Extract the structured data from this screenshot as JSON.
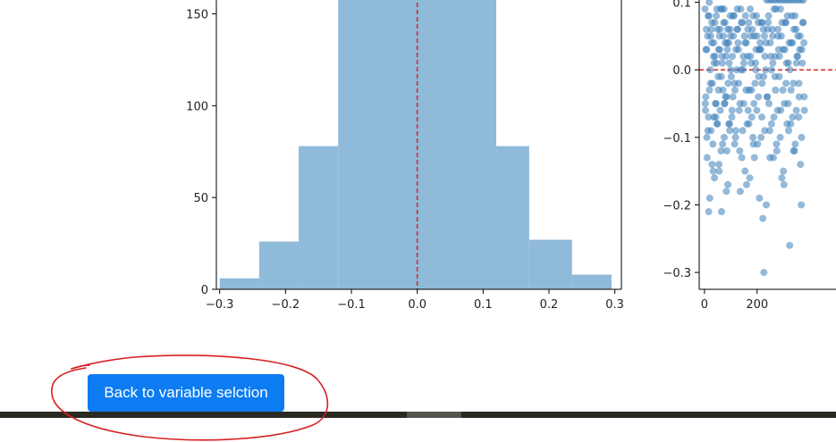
{
  "colors": {
    "bar_fill": "#8fbad9",
    "scatter_point": "#3d7fb9",
    "reference_line": "#d62728",
    "button_bg": "#0d7cf2",
    "annotation": "#d62020",
    "bottom_bar": "#2a2a22"
  },
  "back_button": {
    "label": "Back to variable selction"
  },
  "chart_data": [
    {
      "type": "bar",
      "bin_edges": [
        -0.3,
        -0.24,
        -0.18,
        -0.12,
        0.12,
        0.17,
        0.235,
        0.295
      ],
      "values": [
        6,
        26,
        78,
        160,
        78,
        27,
        8
      ],
      "reference_line_x": 0.0,
      "xlim": [
        -0.305,
        0.31
      ],
      "ylim": [
        0,
        160
      ],
      "xticks": [
        "−0.3",
        "−0.2",
        "−0.1",
        "0.0",
        "0.1",
        "0.2",
        "0.3"
      ],
      "xtick_values": [
        -0.3,
        -0.2,
        -0.1,
        0.0,
        0.1,
        0.2,
        0.3
      ],
      "yticks": [
        "0",
        "50",
        "100",
        "150"
      ],
      "ytick_values": [
        0,
        50,
        100,
        150
      ]
    },
    {
      "type": "scatter",
      "xlim": [
        -20,
        500
      ],
      "ylim": [
        -0.325,
        0.11
      ],
      "reference_line_y": 0.0,
      "xticks": [
        "0",
        "200"
      ],
      "xtick_values": [
        0,
        200
      ],
      "yticks": [
        "0.1",
        "0.0",
        "−0.1",
        "−0.2",
        "−0.3"
      ],
      "ytick_values": [
        0.1,
        0.0,
        -0.1,
        -0.2,
        -0.3
      ],
      "points_x": [
        2,
        5,
        8,
        10,
        12,
        15,
        18,
        20,
        22,
        25,
        28,
        30,
        32,
        35,
        38,
        40,
        42,
        45,
        48,
        50,
        52,
        55,
        58,
        60,
        62,
        65,
        68,
        70,
        72,
        75,
        78,
        80,
        82,
        85,
        88,
        90,
        92,
        95,
        98,
        100,
        105,
        110,
        115,
        120,
        125,
        130,
        135,
        140,
        145,
        150,
        155,
        160,
        165,
        170,
        175,
        180,
        185,
        190,
        195,
        200,
        205,
        210,
        215,
        220,
        225,
        230,
        235,
        240,
        245,
        250,
        255,
        260,
        265,
        270,
        275,
        280,
        285,
        290,
        295,
        300,
        305,
        310,
        315,
        320,
        325,
        330,
        335,
        340,
        345,
        350,
        355,
        360,
        365,
        370,
        375,
        380,
        3,
        7,
        13,
        17,
        23,
        27,
        33,
        37,
        43,
        47,
        53,
        57,
        63,
        67,
        73,
        77,
        83,
        87,
        93,
        97,
        102,
        108,
        112,
        118,
        122,
        128,
        132,
        138,
        142,
        148,
        152,
        158,
        162,
        168,
        172,
        178,
        182,
        188,
        192,
        198,
        202,
        208,
        212,
        218,
        222,
        228,
        232,
        238,
        242,
        248,
        252,
        258,
        262,
        268,
        272,
        278,
        282,
        288,
        292,
        298,
        302,
        308,
        312,
        318,
        322,
        328,
        332,
        338,
        342,
        348,
        352,
        358,
        362,
        368,
        372,
        378,
        4,
        9,
        14,
        19,
        24,
        29,
        34,
        39,
        44,
        49,
        54,
        59,
        64,
        69,
        74,
        79,
        84,
        89,
        94,
        99,
        104,
        109,
        114,
        119,
        124,
        129,
        134,
        139,
        144,
        149,
        154,
        159,
        164,
        169,
        174,
        179,
        184,
        189,
        194,
        199,
        204,
        209,
        214,
        219,
        224,
        229,
        234,
        239,
        244,
        249,
        254,
        259,
        264,
        269,
        274,
        279,
        284,
        289,
        294,
        299,
        304,
        309,
        314,
        319,
        324,
        329,
        334,
        339,
        344,
        349,
        354,
        359,
        364,
        369,
        374,
        379,
        6,
        16,
        26,
        36,
        46,
        56,
        66,
        76,
        86,
        96,
        106,
        116,
        126,
        136,
        146,
        156,
        166,
        176,
        186,
        196,
        206,
        216,
        226,
        236,
        246,
        256,
        266,
        276,
        286,
        296,
        306,
        316,
        326,
        336,
        346,
        356,
        366,
        376
      ],
      "points_y": [
        0.09,
        -0.04,
        0.03,
        -0.13,
        0.05,
        -0.07,
        0.1,
        -0.19,
        0.0,
        -0.09,
        0.07,
        -0.02,
        -0.11,
        0.04,
        -0.16,
        0.02,
        -0.05,
        0.08,
        -0.08,
        0.06,
        -0.01,
        -0.14,
        0.03,
        -0.06,
        0.09,
        -0.21,
        0.01,
        -0.03,
        0.05,
        -0.1,
        0.07,
        -0.04,
        0.02,
        -0.12,
        0.06,
        -0.02,
        0.04,
        -0.08,
        0.08,
        0.0,
        -0.06,
        0.05,
        -0.11,
        0.03,
        0.09,
        -0.02,
        -0.05,
        0.07,
        -0.09,
        0.01,
        0.04,
        -0.17,
        0.06,
        -0.03,
        0.02,
        -0.07,
        0.08,
        -0.13,
        0.0,
        0.05,
        -0.04,
        0.03,
        -0.1,
        0.07,
        -0.01,
        0.02,
        -0.2,
        0.06,
        -0.05,
        0.04,
        -0.08,
        0.01,
        0.09,
        -0.03,
        -0.12,
        0.05,
        0.02,
        -0.06,
        0.07,
        -0.15,
        0.03,
        -0.02,
        0.08,
        -0.09,
        0.0,
        0.04,
        -0.07,
        0.06,
        -0.11,
        0.01,
        0.05,
        -0.04,
        -0.14,
        0.03,
        0.07,
        -0.06,
        -0.05,
        0.06,
        -0.09,
        0.08,
        -0.02,
        0.04,
        -0.15,
        0.01,
        -0.07,
        0.09,
        -0.03,
        0.05,
        -0.12,
        0.02,
        0.07,
        -0.05,
        -0.18,
        0.03,
        -0.08,
        0.06,
        -0.01,
        -0.04,
        0.08,
        -0.1,
        0.0,
        0.04,
        -0.06,
        0.09,
        -0.13,
        0.02,
        0.05,
        -0.03,
        -0.08,
        0.07,
        -0.16,
        0.01,
        0.06,
        -0.05,
        -0.02,
        0.08,
        -0.11,
        0.03,
        0.04,
        -0.07,
        -0.22,
        0.05,
        0.0,
        -0.04,
        0.07,
        -0.09,
        0.02,
        0.06,
        -0.13,
        -0.01,
        0.09,
        -0.06,
        0.03,
        -0.1,
        0.05,
        -0.03,
        -0.17,
        0.07,
        0.01,
        -0.05,
        0.04,
        -0.08,
        0.08,
        -0.02,
        -0.12,
        0.06,
        0.02,
        -0.07,
        0.03,
        -0.2,
        0.01,
        0.04,
        -0.06,
        -0.1,
        0.08,
        -0.03,
        0.05,
        -0.14,
        0.02,
        0.07,
        -0.05,
        -0.08,
        0.03,
        0.06,
        -0.01,
        -0.11,
        0.09,
        0.04,
        -0.04,
        -0.17,
        0.01,
        0.05,
        -0.07,
        0.08,
        -0.02,
        -0.09,
        0.06,
        0.03,
        -0.12,
        0.0,
        0.07,
        -0.05,
        -0.15,
        0.04,
        0.02,
        -0.08,
        0.09,
        -0.03,
        -0.1,
        0.05,
        0.01,
        -0.06,
        0.07,
        -0.19,
        0.03,
        -0.02,
        0.06,
        -0.09,
        0.04,
        -0.04,
        0.08,
        -0.13,
        0.0,
        0.05,
        -0.07,
        0.02,
        -0.11,
        0.06,
        -0.01,
        0.09,
        -0.16,
        0.03,
        -0.05,
        0.07,
        -0.08,
        0.01,
        -0.26,
        -0.03,
        0.04,
        -0.12,
        0.08,
        -0.06,
        0.02,
        -0.02,
        0.05,
        -0.1,
        0.07,
        -0.04,
        0.03,
        -0.21,
        0.06,
        -0.07,
        0.01,
        -0.15,
        0.09,
        -0.05,
        0.04,
        -0.09,
        0.02,
        -0.03,
        0.06,
        -0.18,
        0.0,
        0.08,
        -0.06,
        0.05,
        -0.11,
        0.03,
        -0.01,
        0.07,
        -0.3
      ]
    }
  ]
}
